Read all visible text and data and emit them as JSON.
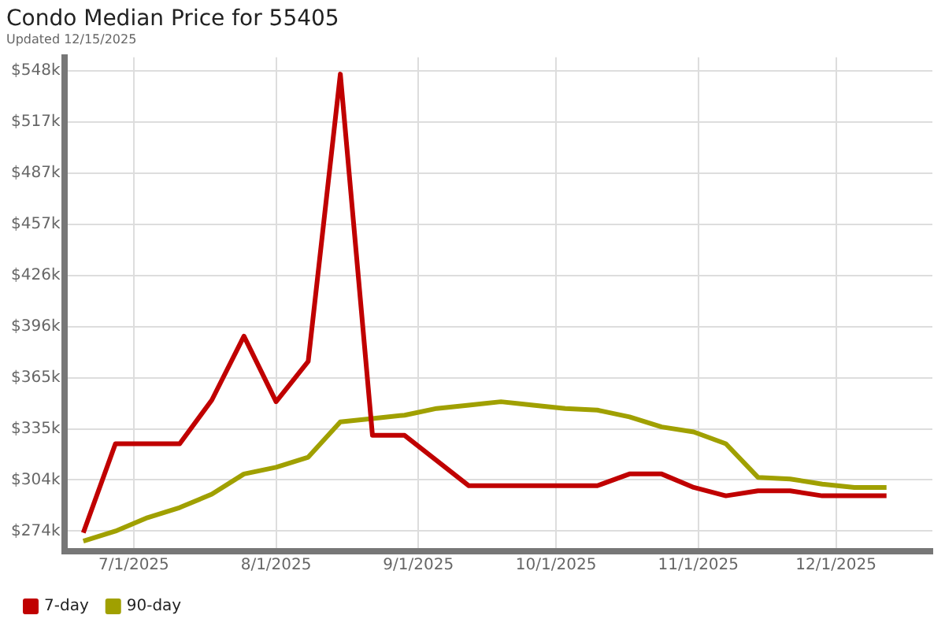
{
  "chart_data": {
    "type": "line",
    "title": "Condo Median Price for 55405",
    "subtitle": "Updated 12/15/2025",
    "x": [
      "2025-06-20",
      "2025-06-27",
      "2025-07-04",
      "2025-07-11",
      "2025-07-18",
      "2025-07-25",
      "2025-08-01",
      "2025-08-08",
      "2025-08-15",
      "2025-08-22",
      "2025-08-29",
      "2025-09-05",
      "2025-09-12",
      "2025-09-19",
      "2025-09-26",
      "2025-10-03",
      "2025-10-10",
      "2025-10-17",
      "2025-10-24",
      "2025-10-31",
      "2025-11-07",
      "2025-11-14",
      "2025-11-21",
      "2025-11-28",
      "2025-12-05",
      "2025-12-12"
    ],
    "series": [
      {
        "name": "7-day",
        "color": "#c00000",
        "values": [
          273,
          326,
          326,
          326,
          352,
          390,
          351,
          375,
          546,
          331,
          331,
          316,
          301,
          301,
          301,
          301,
          301,
          308,
          308,
          300,
          295,
          298,
          298,
          295,
          295,
          295
        ]
      },
      {
        "name": "90-day",
        "color": "#a0a000",
        "values": [
          268,
          274,
          282,
          288,
          296,
          308,
          312,
          318,
          339,
          341,
          343,
          347,
          349,
          351,
          349,
          347,
          346,
          342,
          336,
          333,
          326,
          306,
          305,
          302,
          300,
          300
        ]
      }
    ],
    "xlim": [
      "2025-06-16",
      "2025-12-22"
    ],
    "xticks": [
      {
        "value": "2025-07-01",
        "label": "7/1/2025"
      },
      {
        "value": "2025-08-01",
        "label": "8/1/2025"
      },
      {
        "value": "2025-09-01",
        "label": "9/1/2025"
      },
      {
        "value": "2025-10-01",
        "label": "10/1/2025"
      },
      {
        "value": "2025-11-01",
        "label": "11/1/2025"
      },
      {
        "value": "2025-12-01",
        "label": "12/1/2025"
      }
    ],
    "ylim": [
      262,
      556
    ],
    "yticks": [
      {
        "value": 274,
        "label": "$274k"
      },
      {
        "value": 304.44,
        "label": "$304k"
      },
      {
        "value": 334.89,
        "label": "$335k"
      },
      {
        "value": 365.33,
        "label": "$365k"
      },
      {
        "value": 395.78,
        "label": "$396k"
      },
      {
        "value": 426.22,
        "label": "$426k"
      },
      {
        "value": 456.67,
        "label": "$457k"
      },
      {
        "value": 487.11,
        "label": "$487k"
      },
      {
        "value": 517.4,
        "label": "$517k"
      },
      {
        "value": 548,
        "label": "$548k"
      }
    ],
    "grid": true,
    "legend": "bottom left",
    "marker": "none",
    "line_style": "solid"
  }
}
